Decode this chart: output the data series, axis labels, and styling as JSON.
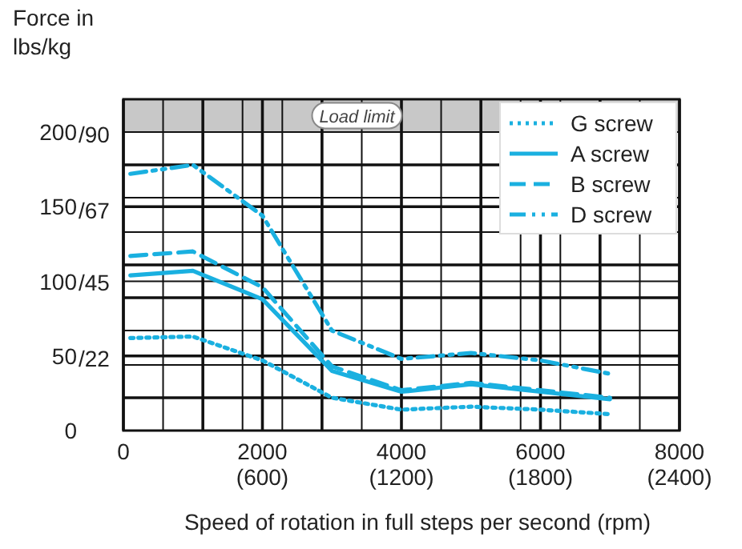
{
  "chart_data": {
    "type": "line",
    "ylabel": "Force in\nlbs/kg",
    "xlabel": "Speed of rotation in full steps per second (rpm)",
    "x": [
      100,
      1000,
      2000,
      3000,
      4000,
      5000,
      6000,
      7000
    ],
    "series": [
      {
        "name": "G screw",
        "color": "#1ab0e0",
        "line_style": "dotted",
        "values": [
          62,
          63,
          47,
          22,
          14,
          16,
          14,
          11
        ]
      },
      {
        "name": "A screw",
        "color": "#1ab0e0",
        "line_style": "solid",
        "values": [
          104,
          107,
          88,
          40,
          26,
          31,
          26,
          21
        ]
      },
      {
        "name": "B screw",
        "color": "#1ab0e0",
        "line_style": "dashed",
        "values": [
          117,
          120,
          96,
          43,
          27,
          32,
          27,
          22
        ]
      },
      {
        "name": "D screw",
        "color": "#1ab0e0",
        "line_style": "dashdot",
        "values": [
          172,
          178,
          144,
          67,
          48,
          52,
          47,
          38
        ]
      }
    ],
    "xlim": [
      0,
      8000
    ],
    "ylim": [
      0,
      222
    ],
    "xticks": [
      0,
      {
        "value": 571,
        "label": null
      },
      {
        "value": 1143,
        "label": null
      },
      {
        "value": 1714,
        "label": null
      },
      2000,
      {
        "value": 2286,
        "label": null
      },
      {
        "value": 2857,
        "label": null
      },
      {
        "value": 3429,
        "label": null
      },
      4000,
      {
        "value": 4571,
        "label": null
      },
      {
        "value": 5143,
        "label": null
      },
      {
        "value": 5714,
        "label": null
      },
      6000,
      {
        "value": 6286,
        "label": null
      },
      {
        "value": 6857,
        "label": null
      },
      {
        "value": 7429,
        "label": null
      },
      8000
    ],
    "x2lim": [
      0,
      2400
    ],
    "x2ticks": [
      {
        "value": 600,
        "label": "(600)"
      },
      {
        "value": 1200,
        "label": "(1200)"
      },
      {
        "value": 1800,
        "label": "(1800)"
      },
      {
        "value": 2400,
        "label": "(2400)"
      }
    ],
    "y2lim": [
      0,
      100.7
    ],
    "y2ticks": [
      {
        "value": 22,
        "label": "/22"
      },
      {
        "value": 45,
        "label": "/45"
      },
      {
        "value": 67,
        "label": "/67"
      },
      {
        "value": 90,
        "label": "/90"
      }
    ],
    "yticks": [
      0,
      {
        "value": 22,
        "label": null
      },
      {
        "value": 44,
        "label": null
      },
      50,
      {
        "value": 67,
        "label": null
      },
      {
        "value": 89,
        "label": null
      },
      100,
      {
        "value": 111,
        "label": null
      },
      {
        "value": 133,
        "label": null
      },
      150,
      {
        "value": 156,
        "label": null
      },
      {
        "value": 178,
        "label": null
      },
      200
    ],
    "bands": [
      {
        "axis": "y",
        "from": 200,
        "to": 222,
        "label": "Load limit",
        "color": "#c8c8c8"
      }
    ],
    "grid": true,
    "legend": "top right",
    "marker": "none"
  }
}
